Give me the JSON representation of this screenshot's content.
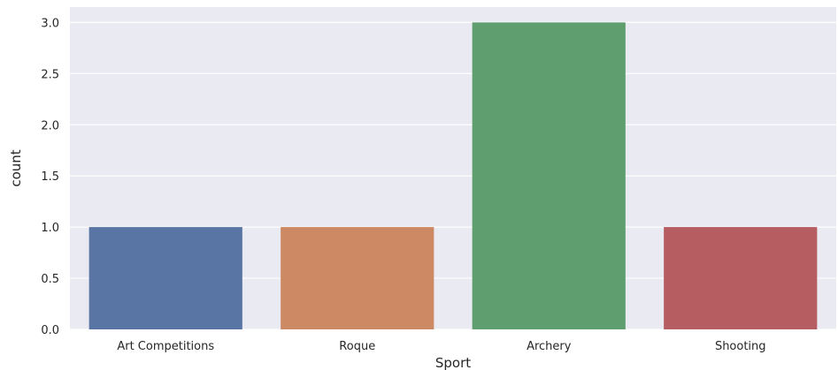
{
  "chart_data": {
    "type": "bar",
    "title": "",
    "xlabel": "Sport",
    "ylabel": "count",
    "categories": [
      "Art Competitions",
      "Roque",
      "Archery",
      "Shooting"
    ],
    "values": [
      1,
      1,
      3,
      1
    ],
    "colors": [
      "#5875a4",
      "#cc8963",
      "#5f9e6e",
      "#b55d60"
    ],
    "ylim": [
      0,
      3.15
    ],
    "yticks": [
      0.0,
      0.5,
      1.0,
      1.5,
      2.0,
      2.5,
      3.0
    ],
    "ytick_labels": [
      "0.0",
      "0.5",
      "1.0",
      "1.5",
      "2.0",
      "2.5",
      "3.0"
    ],
    "grid": true,
    "background": "#eaeaf2"
  }
}
